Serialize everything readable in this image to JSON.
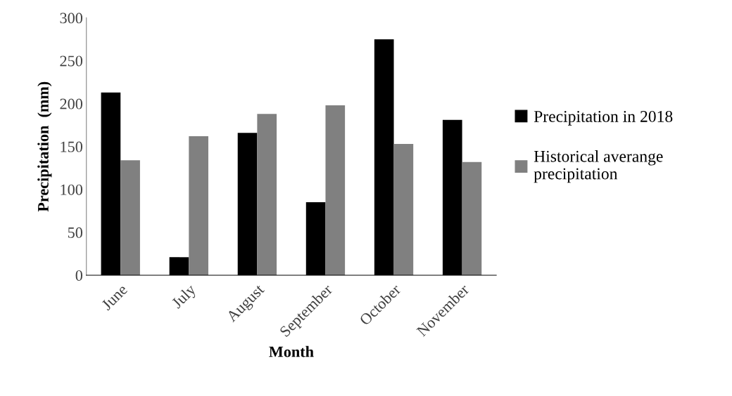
{
  "chart_data": {
    "type": "bar",
    "xlabel": "Month",
    "ylabel": "Precipitation  (mm)",
    "categories": [
      "June",
      "July",
      "August",
      "September",
      "October",
      "November"
    ],
    "series": [
      {
        "name": "Precipitation in 2018",
        "color": "#000000",
        "values": [
          213,
          21,
          166,
          85,
          275,
          181
        ]
      },
      {
        "name": "Historical averange\nprecipitation",
        "color": "#808080",
        "values": [
          134,
          162,
          188,
          198,
          153,
          132
        ]
      }
    ],
    "ylim": [
      0,
      300
    ],
    "yticks": [
      0,
      50,
      100,
      150,
      200,
      250,
      300
    ],
    "grid": false,
    "legend": "right"
  }
}
